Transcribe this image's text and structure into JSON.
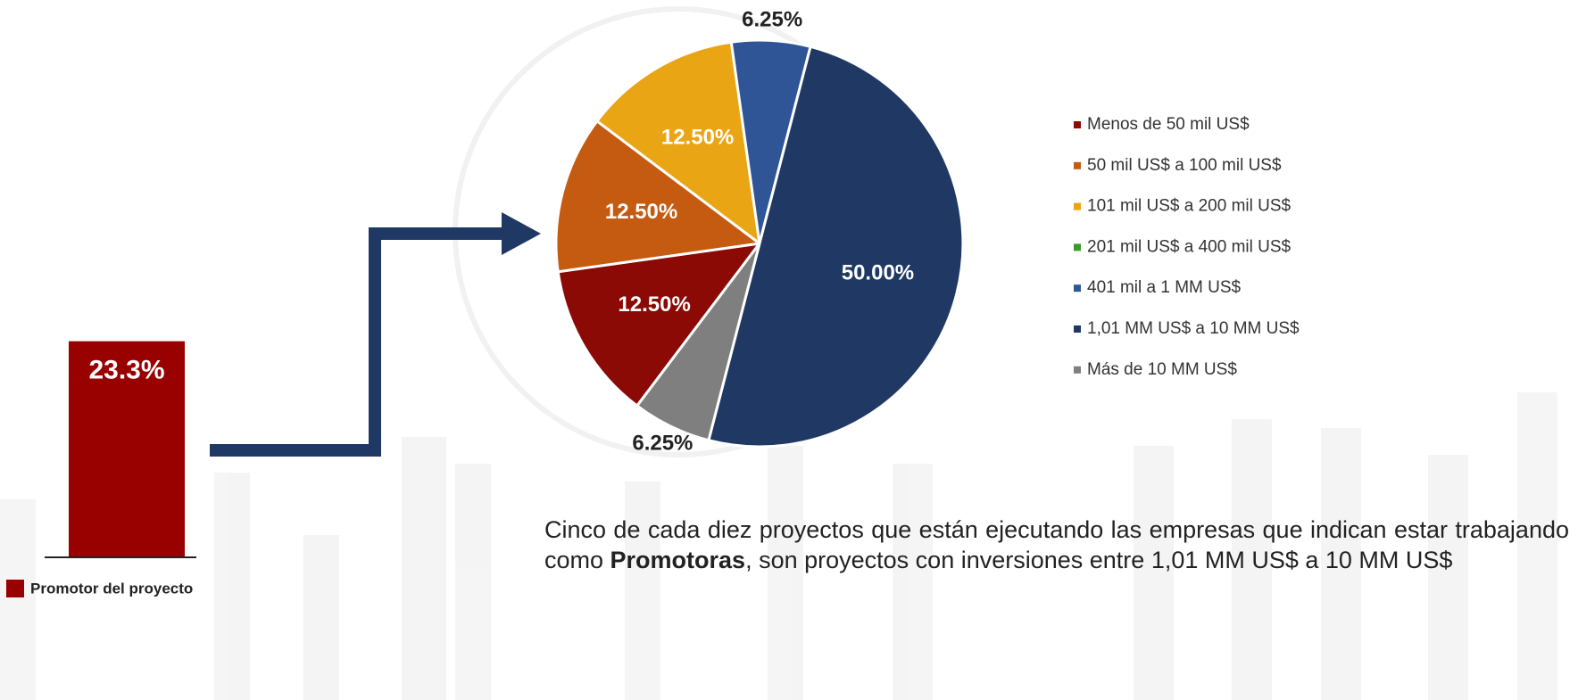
{
  "chart_data": [
    {
      "type": "bar",
      "series": [
        {
          "name": "Promotor del proyecto",
          "color": "#990000",
          "values": [
            23.3
          ],
          "value_labels": [
            "23.3%"
          ]
        }
      ]
    },
    {
      "type": "pie",
      "categories": [
        "Menos de 50 mil US$",
        "50 mil US$ a 100 mil US$",
        "101 mil US$ a 200 mil US$",
        "201 mil US$ a 400 mil US$",
        "401 mil a 1 MM US$",
        "1,01 MM US$ a 10 MM US$",
        "Más de 10 MM US$"
      ],
      "values": [
        12.5,
        12.5,
        12.5,
        0,
        6.25,
        50,
        6.25
      ],
      "value_labels": [
        "12.50%",
        "12.50%",
        "12.50%",
        null,
        "6.25%",
        "50.00%",
        "6.25%"
      ],
      "colors": [
        "#8b0a06",
        "#c55a11",
        "#e9a513",
        "#3a9a2a",
        "#2f5597",
        "#1f3864",
        "#7f7f7f"
      ],
      "legend": "right"
    }
  ],
  "caption": {
    "parts": [
      "Cinco de cada diez proyectos que están ejecutando las empresas que indican estar trabajando como ",
      "Promotoras",
      ", son proyectos con inversiones entre 1,01 MM US$ a 10 MM US$"
    ]
  }
}
